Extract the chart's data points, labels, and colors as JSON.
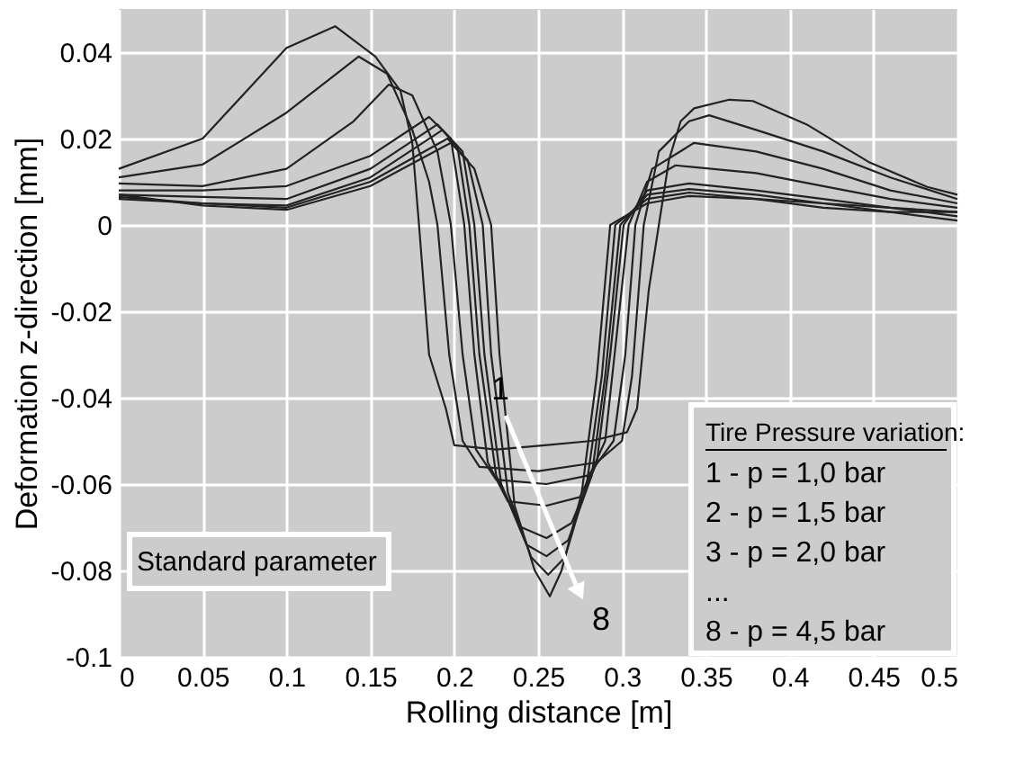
{
  "chart_data": {
    "type": "line",
    "xlabel": "Rolling distance [m]",
    "ylabel": "Deformation z-direction [mm]",
    "xlim": [
      0,
      0.5
    ],
    "ylim": [
      -0.1,
      0.05
    ],
    "xticks": [
      0,
      0.05,
      0.1,
      0.15,
      0.2,
      0.25,
      0.3,
      0.35,
      0.4,
      0.45,
      0.5
    ],
    "yticks": [
      -0.1,
      -0.08,
      -0.06,
      -0.04,
      -0.02,
      0,
      0.02,
      0.04
    ],
    "grid": true,
    "line_style": "solid",
    "marker": "none",
    "series": [
      {
        "color": "#222222",
        "x": [
          0,
          0.05,
          0.1,
          0.129,
          0.153,
          0.168,
          0.175,
          0.179,
          0.185,
          0.195,
          0.2,
          0.225,
          0.254,
          0.282,
          0.303,
          0.309,
          0.316,
          0.322,
          0.328,
          0.335,
          0.343,
          0.364,
          0.378,
          0.41,
          0.447,
          0.482,
          0.5
        ],
        "values": [
          0.013,
          0.02,
          0.041,
          0.046,
          0.039,
          0.031,
          0.019,
          0,
          -0.03,
          -0.0425,
          -0.051,
          -0.052,
          -0.051,
          -0.05,
          -0.048,
          -0.0425,
          -0.015,
          0,
          0.015,
          0.024,
          0.027,
          0.029,
          0.0287,
          0.0233,
          0.0146,
          0.0088,
          0.007
        ]
      },
      {
        "color": "#222222",
        "x": [
          0,
          0.05,
          0.1,
          0.143,
          0.16,
          0.175,
          0.185,
          0.19,
          0.197,
          0.205,
          0.215,
          0.25,
          0.285,
          0.3,
          0.306,
          0.313,
          0.322,
          0.34,
          0.352,
          0.38,
          0.42,
          0.46,
          0.5
        ],
        "values": [
          0.011,
          0.014,
          0.026,
          0.039,
          0.035,
          0.022,
          0.01,
          0,
          -0.03,
          -0.05,
          -0.056,
          -0.057,
          -0.055,
          -0.05,
          -0.035,
          0,
          0.017,
          0.024,
          0.0254,
          0.022,
          0.017,
          0.011,
          0.006
        ]
      },
      {
        "color": "#222222",
        "x": [
          0,
          0.05,
          0.1,
          0.14,
          0.161,
          0.175,
          0.19,
          0.198,
          0.205,
          0.213,
          0.225,
          0.255,
          0.28,
          0.295,
          0.302,
          0.308,
          0.318,
          0.343,
          0.38,
          0.42,
          0.46,
          0.5
        ],
        "values": [
          0.0096,
          0.009,
          0.013,
          0.024,
          0.0325,
          0.03,
          0.017,
          0,
          -0.03,
          -0.052,
          -0.059,
          -0.06,
          -0.058,
          -0.05,
          -0.03,
          0,
          0.013,
          0.019,
          0.017,
          0.013,
          0.008,
          0.005
        ]
      },
      {
        "color": "#222222",
        "x": [
          0,
          0.05,
          0.1,
          0.15,
          0.185,
          0.198,
          0.206,
          0.212,
          0.22,
          0.232,
          0.255,
          0.275,
          0.29,
          0.297,
          0.304,
          0.315,
          0.332,
          0.38,
          0.42,
          0.46,
          0.5
        ],
        "values": [
          0.008,
          0.008,
          0.009,
          0.016,
          0.025,
          0.02,
          0,
          -0.03,
          -0.055,
          -0.064,
          -0.065,
          -0.063,
          -0.05,
          -0.025,
          0,
          0.01,
          0.0138,
          0.012,
          0.009,
          0.006,
          0.004
        ]
      },
      {
        "color": "#222222",
        "x": [
          0,
          0.05,
          0.1,
          0.15,
          0.19,
          0.202,
          0.209,
          0.215,
          0.225,
          0.24,
          0.255,
          0.27,
          0.285,
          0.293,
          0.301,
          0.315,
          0.34,
          0.38,
          0.42,
          0.46,
          0.5
        ],
        "values": [
          0.007,
          0.0065,
          0.006,
          0.013,
          0.0233,
          0.018,
          0,
          -0.03,
          -0.058,
          -0.07,
          -0.0725,
          -0.069,
          -0.055,
          -0.03,
          0,
          0.008,
          0.0096,
          0.008,
          0.006,
          0.004,
          0.003
        ]
      },
      {
        "color": "#222222",
        "x": [
          0,
          0.05,
          0.1,
          0.15,
          0.193,
          0.205,
          0.212,
          0.218,
          0.228,
          0.243,
          0.255,
          0.268,
          0.282,
          0.29,
          0.299,
          0.315,
          0.34,
          0.38,
          0.42,
          0.46,
          0.5
        ],
        "values": [
          0.006,
          0.005,
          0.0045,
          0.011,
          0.022,
          0.017,
          0,
          -0.03,
          -0.06,
          -0.074,
          -0.0767,
          -0.073,
          -0.058,
          -0.035,
          0,
          0.007,
          0.0083,
          0.007,
          0.005,
          0.004,
          0.002
        ]
      },
      {
        "color": "#222222",
        "x": [
          0,
          0.05,
          0.1,
          0.15,
          0.196,
          0.208,
          0.217,
          0.222,
          0.232,
          0.246,
          0.256,
          0.266,
          0.279,
          0.288,
          0.296,
          0.315,
          0.34,
          0.38,
          0.42,
          0.46,
          0.5
        ],
        "values": [
          0.0065,
          0.005,
          0.004,
          0.01,
          0.02,
          0.015,
          0,
          -0.03,
          -0.062,
          -0.077,
          -0.081,
          -0.077,
          -0.06,
          -0.035,
          0,
          0.006,
          0.0075,
          0.006,
          0.005,
          0.003,
          0.003
        ]
      },
      {
        "color": "#222222",
        "x": [
          0,
          0.05,
          0.1,
          0.15,
          0.198,
          0.212,
          0.222,
          0.227,
          0.236,
          0.248,
          0.257,
          0.264,
          0.276,
          0.285,
          0.293,
          0.315,
          0.34,
          0.38,
          0.42,
          0.46,
          0.5
        ],
        "values": [
          0.007,
          0.0045,
          0.0035,
          0.009,
          0.019,
          0.013,
          0,
          -0.03,
          -0.065,
          -0.08,
          -0.086,
          -0.08,
          -0.062,
          -0.035,
          0,
          0.005,
          0.0067,
          0.006,
          0.004,
          0.003,
          0.001
        ]
      }
    ],
    "annotations": [
      "Standard parameter",
      "Tire Pressure variation:",
      "1 - p = 1,0 bar",
      "2 - p = 1,5 bar",
      "3 - p = 2,0 bar",
      "...",
      "8 - p = 4,5 bar",
      "1",
      "8"
    ]
  }
}
